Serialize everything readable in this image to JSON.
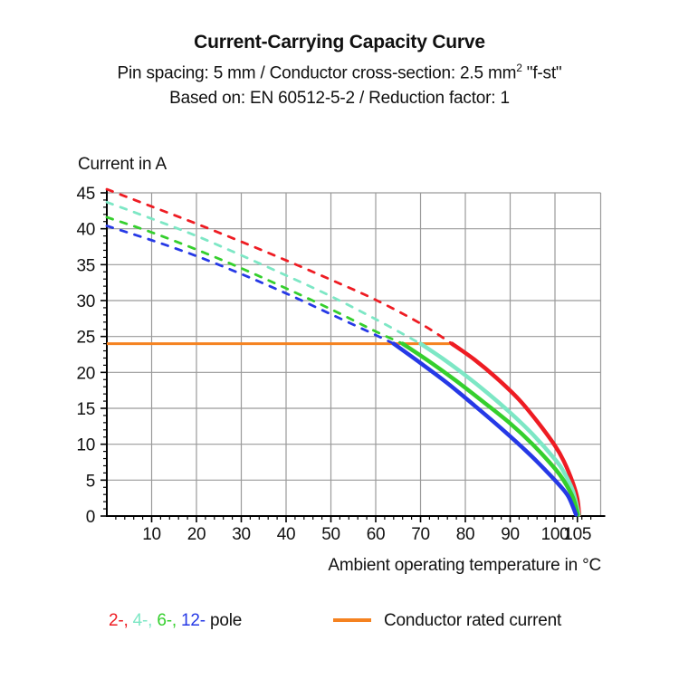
{
  "header": {
    "title": "Current-Carrying Capacity Curve",
    "subtitle1_main": "Pin spacing: 5 mm / Conductor cross-section: 2.5 mm",
    "subtitle1_sup": "2",
    "subtitle1_suffix": " \"f-st\"",
    "subtitle2": "Based on: EN 60512-5-2 / Reduction factor: 1"
  },
  "axes": {
    "y_label": "Current in A",
    "x_label": "Ambient operating temperature in °C"
  },
  "legend": {
    "poles": [
      {
        "label": "2-,",
        "color": "#ee1c23"
      },
      {
        "label": "4-,",
        "color": "#7de7c5"
      },
      {
        "label": "6-,",
        "color": "#35cf2d"
      },
      {
        "label": "12-",
        "color": "#2639e6"
      }
    ],
    "poles_suffix": " pole",
    "rated_label": "Conductor rated current",
    "rated_color": "#f58220"
  },
  "chart_data": {
    "type": "line",
    "title": "Current-Carrying Capacity Curve",
    "xlabel": "Ambient operating temperature in °C",
    "ylabel": "Current in A",
    "xlim": [
      0,
      110.2
    ],
    "ylim": [
      0,
      45
    ],
    "grid": true,
    "grid_color": "#9a9a9a",
    "axis_color": "#000000",
    "x_tick_values": [
      10,
      20,
      30,
      40,
      50,
      60,
      70,
      80,
      90,
      100,
      105
    ],
    "x_tick_labels": [
      "10",
      "20",
      "30",
      "40",
      "50",
      "60",
      "70",
      "80",
      "90",
      "100",
      "105"
    ],
    "x_minor_step": 2,
    "y_tick_values": [
      0,
      5,
      10,
      15,
      20,
      25,
      30,
      35,
      40,
      45
    ],
    "y_tick_labels": [
      "0",
      "5",
      "10",
      "15",
      "20",
      "25",
      "30",
      "35",
      "40",
      "45"
    ],
    "y_minor_step": 1,
    "rated_current": {
      "value": 24,
      "x_start": 0,
      "x_end": 77,
      "color": "#f58220",
      "label": "Conductor rated current"
    },
    "series": [
      {
        "name": "2-pole derating",
        "color": "#ee1c23",
        "style": "dashed",
        "points": [
          [
            0,
            45.5
          ],
          [
            10,
            43.1
          ],
          [
            20,
            40.7
          ],
          [
            30,
            38.2
          ],
          [
            40,
            35.6
          ],
          [
            50,
            32.9
          ],
          [
            60,
            30.1
          ],
          [
            70,
            26.8
          ],
          [
            77,
            24
          ]
        ]
      },
      {
        "name": "2-pole limited",
        "color": "#ee1c23",
        "style": "solid",
        "points": [
          [
            77,
            24
          ],
          [
            82,
            21.8
          ],
          [
            87,
            19.2
          ],
          [
            92,
            16.2
          ],
          [
            96,
            13.2
          ],
          [
            100,
            9.8
          ],
          [
            102,
            7.6
          ],
          [
            104,
            4.6
          ],
          [
            105,
            2.4
          ],
          [
            105.4,
            0.2
          ]
        ]
      },
      {
        "name": "4-pole derating",
        "color": "#7de7c5",
        "style": "dashed",
        "points": [
          [
            0,
            43.7
          ],
          [
            10,
            41.4
          ],
          [
            20,
            39.0
          ],
          [
            30,
            36.3
          ],
          [
            40,
            33.5
          ],
          [
            50,
            30.6
          ],
          [
            60,
            27.4
          ],
          [
            70,
            24
          ]
        ]
      },
      {
        "name": "4-pole limited",
        "color": "#7de7c5",
        "style": "solid",
        "points": [
          [
            70,
            24
          ],
          [
            75,
            21.9
          ],
          [
            80,
            19.6
          ],
          [
            85,
            17.1
          ],
          [
            90,
            14.4
          ],
          [
            95,
            11.4
          ],
          [
            100,
            7.9
          ],
          [
            102,
            6.1
          ],
          [
            104,
            3.5
          ],
          [
            105.3,
            0.2
          ]
        ]
      },
      {
        "name": "6-pole derating",
        "color": "#35cf2d",
        "style": "dashed",
        "points": [
          [
            0,
            41.6
          ],
          [
            10,
            39.5
          ],
          [
            20,
            37.1
          ],
          [
            30,
            34.5
          ],
          [
            40,
            31.7
          ],
          [
            50,
            28.8
          ],
          [
            60,
            25.7
          ],
          [
            66,
            24
          ]
        ]
      },
      {
        "name": "6-pole limited",
        "color": "#35cf2d",
        "style": "solid",
        "points": [
          [
            66,
            24
          ],
          [
            72,
            21.5
          ],
          [
            78,
            18.8
          ],
          [
            84,
            15.9
          ],
          [
            90,
            12.9
          ],
          [
            95,
            10.0
          ],
          [
            100,
            6.6
          ],
          [
            102,
            4.9
          ],
          [
            104,
            2.6
          ],
          [
            105.1,
            0.2
          ]
        ]
      },
      {
        "name": "12-pole derating",
        "color": "#2639e6",
        "style": "dashed",
        "points": [
          [
            0,
            40.4
          ],
          [
            10,
            38.4
          ],
          [
            20,
            36.2
          ],
          [
            30,
            33.7
          ],
          [
            40,
            31.0
          ],
          [
            50,
            28.1
          ],
          [
            60,
            25.2
          ],
          [
            64,
            24
          ]
        ]
      },
      {
        "name": "12-pole limited",
        "color": "#2639e6",
        "style": "solid",
        "points": [
          [
            64,
            24
          ],
          [
            70,
            21.3
          ],
          [
            76,
            18.5
          ],
          [
            82,
            15.4
          ],
          [
            88,
            12.2
          ],
          [
            94,
            8.8
          ],
          [
            98,
            6.3
          ],
          [
            101,
            4.3
          ],
          [
            103,
            2.7
          ],
          [
            104.7,
            0.2
          ]
        ]
      }
    ]
  }
}
